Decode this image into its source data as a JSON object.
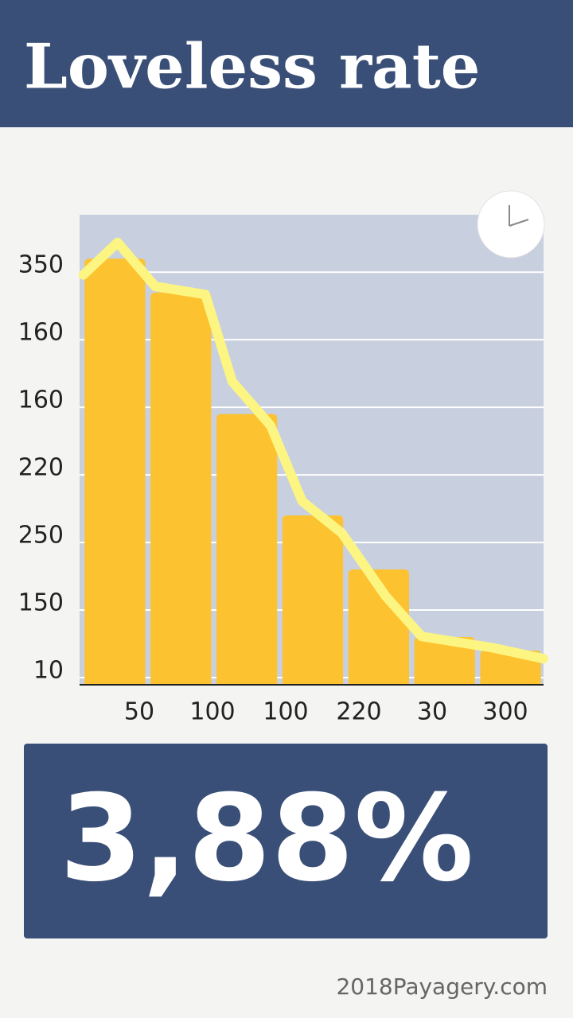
{
  "chart_data": {
    "type": "bar",
    "title": "Loveless rate",
    "headline": "3,88%",
    "footer": "2018Payagery.com",
    "categories": [
      null,
      "50",
      "100",
      "100",
      "220",
      "30",
      "300"
    ],
    "values": [
      6.2,
      5.7,
      3.9,
      2.4,
      1.6,
      0.6,
      0.4
    ],
    "color": "#fcc22f",
    "line": {
      "color": "#fdf582",
      "x": [
        0.02,
        0.54,
        1.11,
        1.87,
        2.28,
        2.86,
        3.34,
        3.94,
        4.61,
        5.15,
        6.24,
        7.0
      ],
      "values": [
        5.96,
        6.44,
        5.79,
        5.67,
        4.38,
        3.73,
        2.61,
        2.14,
        1.2,
        0.61,
        0.44,
        0.28
      ]
    },
    "xlim": [
      0,
      7
    ],
    "ylim": [
      0,
      6.85
    ],
    "yticks": [
      {
        "value": 0,
        "label": "10"
      },
      {
        "value": 1,
        "label": "150"
      },
      {
        "value": 2,
        "label": "250"
      },
      {
        "value": 3,
        "label": "220"
      },
      {
        "value": 4,
        "label": "160"
      },
      {
        "value": 5,
        "label": "160"
      },
      {
        "value": 6,
        "label": "350"
      }
    ],
    "grid": true
  }
}
